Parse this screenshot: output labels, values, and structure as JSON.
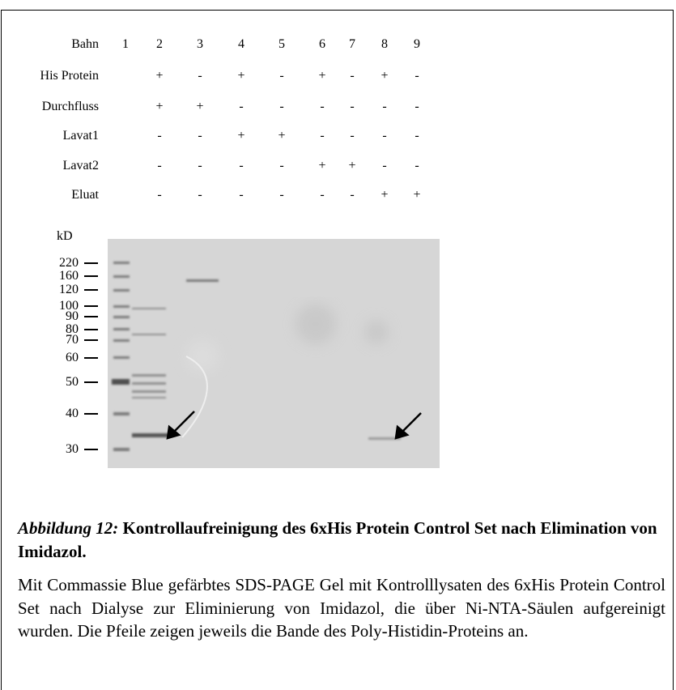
{
  "table": {
    "header": {
      "label": "Bahn",
      "lanes": [
        "1",
        "2",
        "3",
        "4",
        "5",
        "6",
        "7",
        "8",
        "9"
      ]
    },
    "rows": [
      {
        "label": "His Protein",
        "marks": [
          null,
          "+",
          "-",
          "+",
          "-",
          "+",
          "-",
          "+",
          "-"
        ]
      },
      {
        "label": "Durchfluss",
        "marks": [
          null,
          "+",
          "+",
          "-",
          "-",
          "-",
          "-",
          "-",
          "-"
        ]
      },
      {
        "label": "Lavat1",
        "marks": [
          null,
          "-",
          "-",
          "+",
          "+",
          "-",
          "-",
          "-",
          "-"
        ]
      },
      {
        "label": "Lavat2",
        "marks": [
          null,
          "-",
          "-",
          "-",
          "-",
          "+",
          "+",
          "-",
          "-"
        ]
      },
      {
        "label": "Eluat",
        "marks": [
          null,
          "-",
          "-",
          "-",
          "-",
          "-",
          "-",
          "+",
          "+"
        ]
      }
    ]
  },
  "marker": {
    "unit": "kD",
    "labels": [
      "220",
      "160",
      "120",
      "100",
      "90",
      "80",
      "70",
      "60",
      "50",
      "40",
      "30"
    ]
  },
  "caption": {
    "label": "Abbildung 12:",
    "title": "Kontrollaufreinigung des 6xHis Protein Control Set nach Elimination von Imidazol.",
    "body": "Mit Commassie Blue gefärbtes SDS-PAGE Gel mit Kontrolllysaten des 6xHis Protein Control Set nach Dialyse zur Eliminierung von Imidazol, die über Ni-NTA-Säulen aufgereinigt wurden. Die Pfeile zeigen jeweils die Bande des Poly-Histidin-Proteins an."
  }
}
